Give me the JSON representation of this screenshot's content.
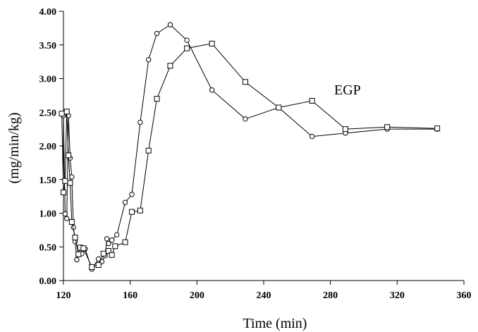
{
  "chart_data": {
    "type": "line",
    "title": "",
    "xlabel": "Time (min)",
    "ylabel": "(mg/min/kg)",
    "annotation": "EGP",
    "xlim": [
      120,
      360
    ],
    "ylim": [
      0,
      4
    ],
    "xticks": [
      "120",
      "160",
      "200",
      "240",
      "280",
      "320",
      "360"
    ],
    "yticks": [
      "0.00",
      "0.50",
      "1.00",
      "1.50",
      "2.00",
      "2.50",
      "3.00",
      "3.50",
      "4.00"
    ],
    "grid": false,
    "series": [
      {
        "marker": "circle",
        "x": [
          120,
          121,
          122,
          123,
          124,
          125,
          126,
          127,
          128,
          130,
          131,
          133,
          137,
          141,
          143,
          145,
          146,
          147,
          149,
          152,
          157,
          161,
          166,
          171,
          176,
          184,
          194,
          209,
          229,
          249,
          269,
          289,
          314,
          344
        ],
        "y": [
          2.45,
          0.99,
          0.92,
          2.45,
          1.82,
          1.54,
          0.79,
          0.58,
          0.31,
          0.45,
          0.4,
          0.47,
          0.17,
          0.32,
          0.28,
          0.37,
          0.62,
          0.55,
          0.6,
          0.68,
          1.16,
          1.28,
          2.35,
          3.28,
          3.67,
          3.8,
          3.57,
          2.83,
          2.4,
          2.57,
          2.14,
          2.19,
          2.25,
          2.25
        ]
      },
      {
        "marker": "square",
        "x": [
          119,
          120,
          121,
          122,
          123,
          124,
          125,
          127,
          129,
          130,
          132,
          137,
          141,
          144,
          147,
          149,
          151,
          157,
          161,
          166,
          171,
          176,
          184,
          194,
          209,
          229,
          249,
          269,
          289,
          314,
          344
        ],
        "y": [
          2.48,
          1.31,
          1.48,
          2.51,
          1.86,
          1.45,
          0.87,
          0.64,
          0.39,
          0.49,
          0.48,
          0.2,
          0.23,
          0.4,
          0.44,
          0.38,
          0.51,
          0.57,
          1.02,
          1.04,
          1.93,
          2.7,
          3.19,
          3.45,
          3.52,
          2.95,
          2.57,
          2.67,
          2.25,
          2.28,
          2.26
        ]
      }
    ]
  }
}
